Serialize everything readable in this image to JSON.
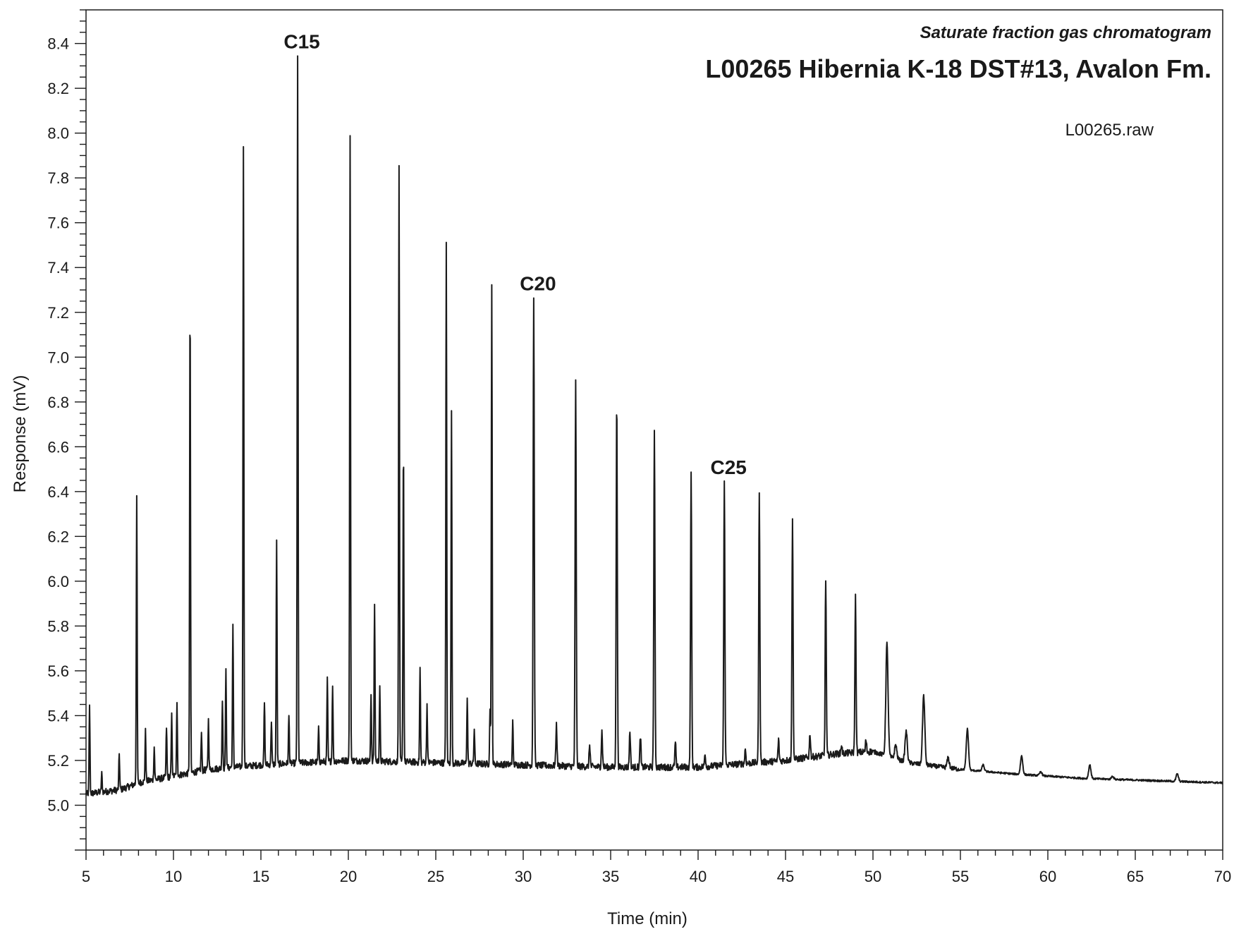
{
  "chart_data": {
    "type": "line",
    "subtitle": "Saturate fraction gas chromatogram",
    "title": "L00265  Hibernia K-18  DST#13,  Avalon Fm.",
    "file_label": "L00265.raw",
    "xlabel": "Time (min)",
    "ylabel": "Response (mV)",
    "xlim": [
      5,
      70
    ],
    "ylim": [
      4.8,
      8.55
    ],
    "x_ticks": [
      5,
      10,
      15,
      20,
      25,
      30,
      35,
      40,
      45,
      50,
      55,
      60,
      65,
      70
    ],
    "y_ticks": [
      "5.0",
      "5.2",
      "5.4",
      "5.6",
      "5.8",
      "6.0",
      "6.2",
      "6.4",
      "6.6",
      "6.8",
      "7.0",
      "7.2",
      "7.4",
      "7.6",
      "7.8",
      "8.0",
      "8.2",
      "8.4"
    ],
    "grid": false,
    "line_color": "#1a1a1a",
    "peak_labels": [
      {
        "text": "C15",
        "x": 17.1,
        "y": 8.34
      },
      {
        "text": "C20",
        "x": 30.6,
        "y": 7.26
      },
      {
        "text": "C25",
        "x": 41.5,
        "y": 6.44
      }
    ],
    "baseline": [
      {
        "x": 5.0,
        "y": 5.05
      },
      {
        "x": 7.0,
        "y": 5.07
      },
      {
        "x": 8.0,
        "y": 5.1
      },
      {
        "x": 10.0,
        "y": 5.13
      },
      {
        "x": 12.0,
        "y": 5.16
      },
      {
        "x": 15.0,
        "y": 5.18
      },
      {
        "x": 20.0,
        "y": 5.2
      },
      {
        "x": 25.0,
        "y": 5.19
      },
      {
        "x": 30.0,
        "y": 5.18
      },
      {
        "x": 35.0,
        "y": 5.17
      },
      {
        "x": 40.0,
        "y": 5.17
      },
      {
        "x": 45.0,
        "y": 5.2
      },
      {
        "x": 48.0,
        "y": 5.23
      },
      {
        "x": 50.0,
        "y": 5.24
      },
      {
        "x": 52.0,
        "y": 5.19
      },
      {
        "x": 55.0,
        "y": 5.16
      },
      {
        "x": 58.0,
        "y": 5.14
      },
      {
        "x": 62.0,
        "y": 5.12
      },
      {
        "x": 66.0,
        "y": 5.11
      },
      {
        "x": 70.0,
        "y": 5.1
      }
    ],
    "peaks": [
      {
        "x": 5.2,
        "y": 5.44
      },
      {
        "x": 5.9,
        "y": 5.14
      },
      {
        "x": 6.9,
        "y": 5.23
      },
      {
        "x": 7.9,
        "y": 6.38
      },
      {
        "x": 8.4,
        "y": 5.33
      },
      {
        "x": 8.9,
        "y": 5.26
      },
      {
        "x": 9.6,
        "y": 5.35
      },
      {
        "x": 9.9,
        "y": 5.4
      },
      {
        "x": 10.2,
        "y": 5.45
      },
      {
        "x": 10.95,
        "y": 7.25
      },
      {
        "x": 11.6,
        "y": 5.32
      },
      {
        "x": 12.0,
        "y": 5.38
      },
      {
        "x": 12.8,
        "y": 5.47
      },
      {
        "x": 13.0,
        "y": 5.6
      },
      {
        "x": 13.4,
        "y": 5.8
      },
      {
        "x": 14.0,
        "y": 7.95
      },
      {
        "x": 15.2,
        "y": 5.46
      },
      {
        "x": 15.6,
        "y": 5.38
      },
      {
        "x": 15.9,
        "y": 6.18
      },
      {
        "x": 16.6,
        "y": 5.4
      },
      {
        "x": 17.1,
        "y": 8.34
      },
      {
        "x": 18.3,
        "y": 5.34
      },
      {
        "x": 18.8,
        "y": 5.56
      },
      {
        "x": 19.1,
        "y": 5.54
      },
      {
        "x": 20.1,
        "y": 8.0
      },
      {
        "x": 21.3,
        "y": 5.5
      },
      {
        "x": 21.5,
        "y": 5.9
      },
      {
        "x": 21.8,
        "y": 5.52
      },
      {
        "x": 22.9,
        "y": 7.85
      },
      {
        "x": 23.15,
        "y": 6.62
      },
      {
        "x": 24.1,
        "y": 5.61
      },
      {
        "x": 24.5,
        "y": 5.45
      },
      {
        "x": 25.6,
        "y": 7.5
      },
      {
        "x": 25.9,
        "y": 6.75
      },
      {
        "x": 26.8,
        "y": 5.48
      },
      {
        "x": 27.2,
        "y": 5.34
      },
      {
        "x": 28.1,
        "y": 5.42
      },
      {
        "x": 28.2,
        "y": 7.31
      },
      {
        "x": 29.4,
        "y": 5.37
      },
      {
        "x": 30.6,
        "y": 7.26
      },
      {
        "x": 31.9,
        "y": 5.36
      },
      {
        "x": 33.0,
        "y": 6.89
      },
      {
        "x": 33.8,
        "y": 5.27
      },
      {
        "x": 34.5,
        "y": 5.33
      },
      {
        "x": 35.35,
        "y": 6.81
      },
      {
        "x": 36.1,
        "y": 5.33
      },
      {
        "x": 36.7,
        "y": 5.31
      },
      {
        "x": 37.5,
        "y": 6.67
      },
      {
        "x": 38.7,
        "y": 5.28
      },
      {
        "x": 39.6,
        "y": 6.48
      },
      {
        "x": 40.4,
        "y": 5.23
      },
      {
        "x": 41.5,
        "y": 6.44
      },
      {
        "x": 42.7,
        "y": 5.25
      },
      {
        "x": 43.5,
        "y": 6.39
      },
      {
        "x": 44.6,
        "y": 5.29
      },
      {
        "x": 45.4,
        "y": 6.27
      },
      {
        "x": 46.4,
        "y": 5.32
      },
      {
        "x": 47.3,
        "y": 6.01
      },
      {
        "x": 48.2,
        "y": 5.27
      },
      {
        "x": 49.0,
        "y": 5.93
      },
      {
        "x": 49.6,
        "y": 5.29
      },
      {
        "x": 50.8,
        "y": 5.72
      },
      {
        "x": 51.3,
        "y": 5.27
      },
      {
        "x": 51.9,
        "y": 5.33
      },
      {
        "x": 52.9,
        "y": 5.49
      },
      {
        "x": 54.3,
        "y": 5.21
      },
      {
        "x": 55.4,
        "y": 5.34
      },
      {
        "x": 56.3,
        "y": 5.18
      },
      {
        "x": 58.5,
        "y": 5.22
      },
      {
        "x": 59.6,
        "y": 5.15
      },
      {
        "x": 62.4,
        "y": 5.18
      },
      {
        "x": 63.7,
        "y": 5.13
      },
      {
        "x": 67.4,
        "y": 5.14
      }
    ]
  }
}
